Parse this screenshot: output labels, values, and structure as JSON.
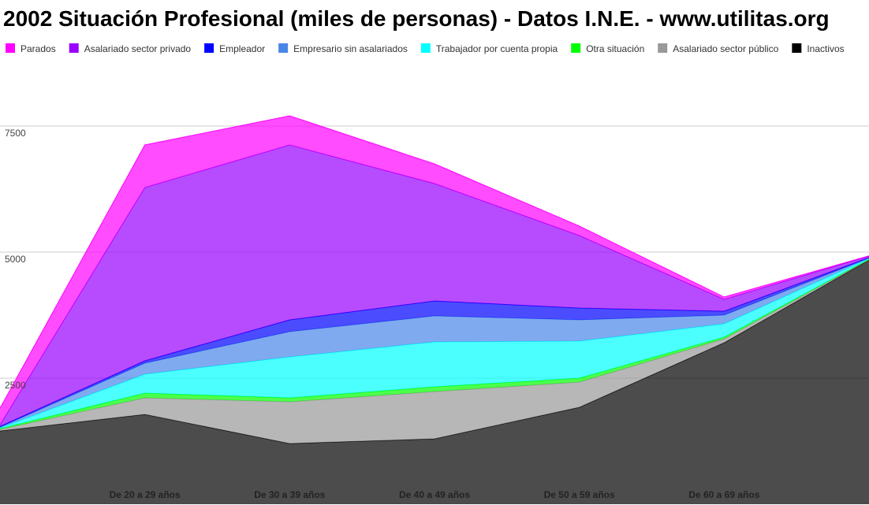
{
  "chart_data": {
    "type": "stacked_area",
    "title": "2002 Situación Profesional (miles de personas) - Datos I.N.E. - www.utilitas.org",
    "categories": [
      null,
      "De 20 a 29 años",
      "De 30 a 39 años",
      "De 40 a 49 años",
      "De 50 a 59 años",
      "De 60 a 69 años",
      null
    ],
    "series": [
      {
        "name": "Inactivos",
        "color": "#000000",
        "values": [
          1453,
          1781,
          1203,
          1297,
          1922,
          3203,
          4844
        ]
      },
      {
        "name": "Asalariado sector público",
        "color": "#999999",
        "values": [
          30,
          328,
          828,
          937,
          500,
          78,
          8
        ]
      },
      {
        "name": "Otra situación",
        "color": "#00ff00",
        "values": [
          15,
          94,
          78,
          94,
          78,
          32,
          8
        ]
      },
      {
        "name": "Trabajador por cuenta propia",
        "color": "#00ffff",
        "values": [
          15,
          375,
          813,
          891,
          734,
          265,
          15
        ]
      },
      {
        "name": "Empresario sin asalariados",
        "color": "#4a86e8",
        "values": [
          15,
          219,
          500,
          515,
          422,
          172,
          8
        ]
      },
      {
        "name": "Empleador",
        "color": "#0000ff",
        "values": [
          15,
          47,
          234,
          297,
          235,
          78,
          8
        ]
      },
      {
        "name": "Asalariado sector privado",
        "color": "#9900ff",
        "values": [
          30,
          3437,
          3469,
          2328,
          1437,
          235,
          30
        ]
      },
      {
        "name": "Parados",
        "color": "#ff00ff",
        "values": [
          330,
          844,
          578,
          391,
          188,
          46,
          5
        ]
      }
    ],
    "ylim": [
      0,
      10000
    ],
    "yticks": [
      2500,
      5000,
      7500
    ],
    "grid": true
  }
}
